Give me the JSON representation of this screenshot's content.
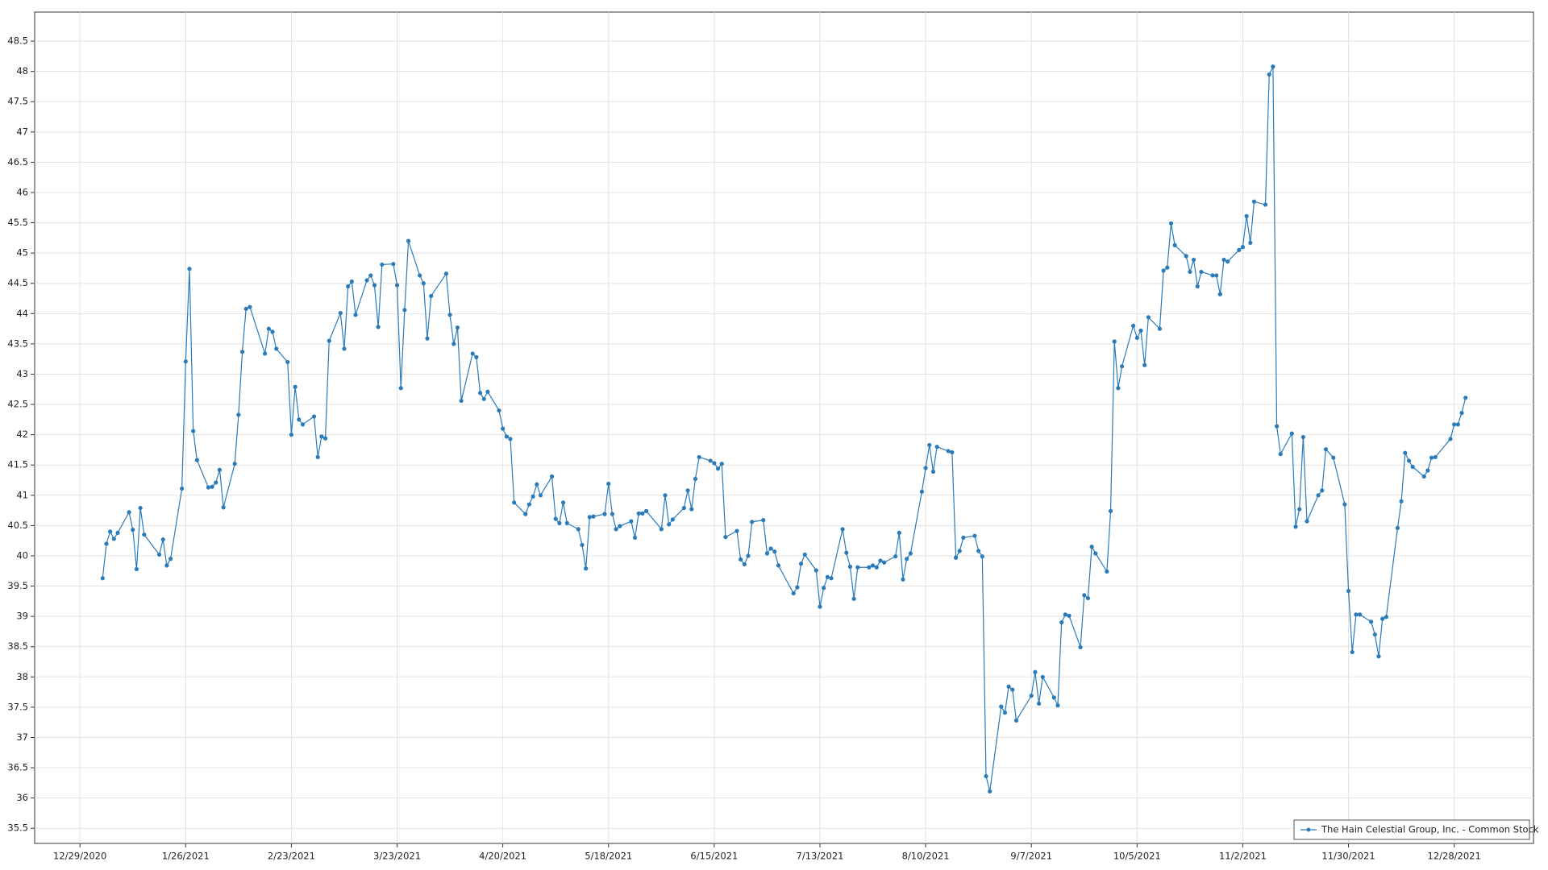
{
  "chart_data": {
    "type": "line",
    "grid": true,
    "legend": "bottom-right",
    "xlim": [
      "12/17/2020",
      "1/18/2022"
    ],
    "xticks": [
      "12/29/2020",
      "1/26/2021",
      "2/23/2021",
      "3/23/2021",
      "4/20/2021",
      "5/18/2021",
      "6/15/2021",
      "7/13/2021",
      "8/10/2021",
      "9/7/2021",
      "10/5/2021",
      "11/2/2021",
      "11/30/2021",
      "12/28/2021"
    ],
    "ylim": [
      35.25,
      48.98
    ],
    "yticks": [
      35.5,
      36,
      36.5,
      37,
      37.5,
      38,
      38.5,
      39,
      39.5,
      40,
      40.5,
      41,
      41.5,
      42,
      42.5,
      43,
      43.5,
      44,
      44.5,
      45,
      45.5,
      46,
      46.5,
      47,
      47.5,
      48,
      48.5
    ],
    "series": [
      {
        "name": "The Hain Celestial Group, Inc. - Common Stock",
        "color": "#2b7bb9",
        "x": [
          "1/4/2021",
          "1/5/2021",
          "1/6/2021",
          "1/7/2021",
          "1/8/2021",
          "1/11/2021",
          "1/12/2021",
          "1/13/2021",
          "1/14/2021",
          "1/15/2021",
          "1/19/2021",
          "1/20/2021",
          "1/21/2021",
          "1/22/2021",
          "1/25/2021",
          "1/26/2021",
          "1/27/2021",
          "1/28/2021",
          "1/29/2021",
          "2/1/2021",
          "2/2/2021",
          "2/3/2021",
          "2/4/2021",
          "2/5/2021",
          "2/8/2021",
          "2/9/2021",
          "2/10/2021",
          "2/11/2021",
          "2/12/2021",
          "2/16/2021",
          "2/17/2021",
          "2/18/2021",
          "2/19/2021",
          "2/22/2021",
          "2/23/2021",
          "2/24/2021",
          "2/25/2021",
          "2/26/2021",
          "3/1/2021",
          "3/2/2021",
          "3/3/2021",
          "3/4/2021",
          "3/5/2021",
          "3/8/2021",
          "3/9/2021",
          "3/10/2021",
          "3/11/2021",
          "3/12/2021",
          "3/15/2021",
          "3/16/2021",
          "3/17/2021",
          "3/18/2021",
          "3/19/2021",
          "3/22/2021",
          "3/23/2021",
          "3/24/2021",
          "3/25/2021",
          "3/26/2021",
          "3/29/2021",
          "3/30/2021",
          "3/31/2021",
          "4/1/2021",
          "4/5/2021",
          "4/6/2021",
          "4/7/2021",
          "4/8/2021",
          "4/9/2021",
          "4/12/2021",
          "4/13/2021",
          "4/14/2021",
          "4/15/2021",
          "4/16/2021",
          "4/19/2021",
          "4/20/2021",
          "4/21/2021",
          "4/22/2021",
          "4/23/2021",
          "4/26/2021",
          "4/27/2021",
          "4/28/2021",
          "4/29/2021",
          "4/30/2021",
          "5/3/2021",
          "5/4/2021",
          "5/5/2021",
          "5/6/2021",
          "5/7/2021",
          "5/10/2021",
          "5/11/2021",
          "5/12/2021",
          "5/13/2021",
          "5/14/2021",
          "5/17/2021",
          "5/18/2021",
          "5/19/2021",
          "5/20/2021",
          "5/21/2021",
          "5/24/2021",
          "5/25/2021",
          "5/26/2021",
          "5/27/2021",
          "5/28/2021",
          "6/1/2021",
          "6/2/2021",
          "6/3/2021",
          "6/4/2021",
          "6/7/2021",
          "6/8/2021",
          "6/9/2021",
          "6/10/2021",
          "6/11/2021",
          "6/14/2021",
          "6/15/2021",
          "6/16/2021",
          "6/17/2021",
          "6/18/2021",
          "6/21/2021",
          "6/22/2021",
          "6/23/2021",
          "6/24/2021",
          "6/25/2021",
          "6/28/2021",
          "6/29/2021",
          "6/30/2021",
          "7/1/2021",
          "7/2/2021",
          "7/6/2021",
          "7/7/2021",
          "7/8/2021",
          "7/9/2021",
          "7/12/2021",
          "7/13/2021",
          "7/14/2021",
          "7/15/2021",
          "7/16/2021",
          "7/19/2021",
          "7/20/2021",
          "7/21/2021",
          "7/22/2021",
          "7/23/2021",
          "7/26/2021",
          "7/27/2021",
          "7/28/2021",
          "7/29/2021",
          "7/30/2021",
          "8/2/2021",
          "8/3/2021",
          "8/4/2021",
          "8/5/2021",
          "8/6/2021",
          "8/9/2021",
          "8/10/2021",
          "8/11/2021",
          "8/12/2021",
          "8/13/2021",
          "8/16/2021",
          "8/17/2021",
          "8/18/2021",
          "8/19/2021",
          "8/20/2021",
          "8/23/2021",
          "8/24/2021",
          "8/25/2021",
          "8/26/2021",
          "8/27/2021",
          "8/30/2021",
          "8/31/2021",
          "9/1/2021",
          "9/2/2021",
          "9/3/2021",
          "9/7/2021",
          "9/8/2021",
          "9/9/2021",
          "9/10/2021",
          "9/13/2021",
          "9/14/2021",
          "9/15/2021",
          "9/16/2021",
          "9/17/2021",
          "9/20/2021",
          "9/21/2021",
          "9/22/2021",
          "9/23/2021",
          "9/24/2021",
          "9/27/2021",
          "9/28/2021",
          "9/29/2021",
          "9/30/2021",
          "10/1/2021",
          "10/4/2021",
          "10/5/2021",
          "10/6/2021",
          "10/7/2021",
          "10/8/2021",
          "10/11/2021",
          "10/12/2021",
          "10/13/2021",
          "10/14/2021",
          "10/15/2021",
          "10/18/2021",
          "10/19/2021",
          "10/20/2021",
          "10/21/2021",
          "10/22/2021",
          "10/25/2021",
          "10/26/2021",
          "10/27/2021",
          "10/28/2021",
          "10/29/2021",
          "11/1/2021",
          "11/2/2021",
          "11/3/2021",
          "11/4/2021",
          "11/5/2021",
          "11/8/2021",
          "11/9/2021",
          "11/10/2021",
          "11/11/2021",
          "11/12/2021",
          "11/15/2021",
          "11/16/2021",
          "11/17/2021",
          "11/18/2021",
          "11/19/2021",
          "11/22/2021",
          "11/23/2021",
          "11/24/2021",
          "11/26/2021",
          "11/29/2021",
          "11/30/2021",
          "12/1/2021",
          "12/2/2021",
          "12/3/2021",
          "12/6/2021",
          "12/7/2021",
          "12/8/2021",
          "12/9/2021",
          "12/10/2021",
          "12/13/2021",
          "12/14/2021",
          "12/15/2021",
          "12/16/2021",
          "12/17/2021",
          "12/20/2021",
          "12/21/2021",
          "12/22/2021",
          "12/23/2021",
          "12/27/2021",
          "12/28/2021",
          "12/29/2021",
          "12/30/2021",
          "12/31/2021"
        ],
        "values": [
          39.63,
          40.2,
          40.4,
          40.28,
          40.38,
          40.72,
          40.43,
          39.78,
          40.79,
          40.35,
          40.02,
          40.27,
          39.84,
          39.95,
          41.11,
          43.21,
          44.74,
          42.06,
          41.58,
          41.13,
          41.14,
          41.21,
          41.42,
          40.8,
          41.52,
          42.33,
          43.37,
          44.08,
          44.11,
          43.34,
          43.75,
          43.7,
          43.42,
          43.2,
          42.0,
          42.79,
          42.25,
          42.17,
          42.3,
          41.63,
          41.97,
          41.94,
          43.55,
          44.01,
          43.42,
          44.45,
          44.53,
          43.98,
          44.55,
          44.63,
          44.47,
          43.78,
          44.81,
          44.82,
          44.47,
          42.77,
          44.06,
          45.2,
          44.63,
          44.5,
          43.59,
          44.29,
          44.66,
          43.98,
          43.5,
          43.77,
          42.56,
          43.34,
          43.28,
          42.69,
          42.59,
          42.71,
          42.4,
          42.1,
          41.97,
          41.93,
          40.88,
          40.69,
          40.85,
          40.98,
          41.18,
          41.0,
          41.31,
          40.61,
          40.54,
          40.88,
          40.54,
          40.44,
          40.18,
          39.79,
          40.64,
          40.65,
          40.69,
          41.19,
          40.69,
          40.44,
          40.49,
          40.57,
          40.3,
          40.7,
          40.7,
          40.74,
          40.44,
          41.0,
          40.52,
          40.6,
          40.79,
          41.08,
          40.77,
          41.27,
          41.63,
          41.57,
          41.53,
          41.44,
          41.52,
          40.31,
          40.41,
          39.94,
          39.86,
          40.0,
          40.56,
          40.59,
          40.04,
          40.12,
          40.07,
          39.84,
          39.38,
          39.48,
          39.87,
          40.02,
          39.76,
          39.16,
          39.47,
          39.65,
          39.63,
          40.44,
          40.05,
          39.82,
          39.29,
          39.81,
          39.81,
          39.84,
          39.81,
          39.92,
          39.89,
          39.99,
          40.38,
          39.61,
          39.95,
          40.04,
          41.06,
          41.45,
          41.83,
          41.39,
          41.8,
          41.73,
          41.71,
          39.97,
          40.08,
          40.3,
          40.33,
          40.08,
          39.99,
          36.36,
          36.11,
          37.51,
          37.41,
          37.84,
          37.79,
          37.28,
          37.69,
          38.08,
          37.56,
          38.0,
          37.66,
          37.53,
          38.9,
          39.03,
          39.01,
          38.49,
          39.35,
          39.3,
          40.15,
          40.04,
          39.74,
          40.74,
          43.54,
          42.77,
          43.13,
          43.8,
          43.6,
          43.72,
          43.15,
          43.94,
          43.75,
          44.71,
          44.76,
          45.49,
          45.13,
          44.95,
          44.69,
          44.89,
          44.45,
          44.69,
          44.63,
          44.63,
          44.32,
          44.89,
          44.86,
          45.05,
          45.1,
          45.61,
          45.17,
          45.85,
          45.8,
          47.95,
          48.08,
          42.14,
          41.68,
          42.02,
          40.48,
          40.77,
          41.96,
          40.57,
          41.0,
          41.08,
          41.76,
          41.62,
          40.85,
          39.42,
          38.41,
          39.03,
          39.03,
          38.91,
          38.7,
          38.34,
          38.96,
          38.99,
          40.46,
          40.9,
          41.7,
          41.57,
          41.47,
          41.31,
          41.41,
          41.62,
          41.63,
          41.93,
          42.17,
          42.17,
          42.36,
          42.61
        ]
      }
    ]
  }
}
